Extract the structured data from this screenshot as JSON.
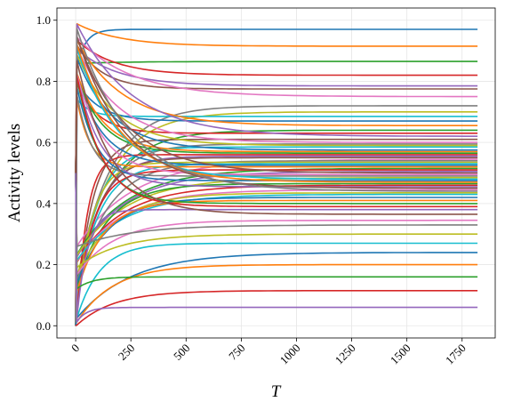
{
  "chart_data": {
    "type": "line",
    "title": "",
    "xlabel": "T",
    "ylabel": "Activity levels",
    "xlim": [
      -85,
      1900
    ],
    "ylim": [
      -0.04,
      1.04
    ],
    "xticks": [
      0,
      250,
      500,
      750,
      1000,
      1250,
      1500,
      1750
    ],
    "xtick_labels": [
      "0",
      "250",
      "500",
      "750",
      "1000",
      "1250",
      "1500",
      "1750"
    ],
    "yticks": [
      0.0,
      0.2,
      0.4,
      0.6,
      0.8,
      1.0
    ],
    "ytick_labels": [
      "0.0",
      "0.2",
      "0.4",
      "0.6",
      "0.8",
      "1.0"
    ],
    "x_tick_rotation_deg": 45,
    "grid": true,
    "legend": "none",
    "x_end": 1820,
    "palette": [
      "#1f77b4",
      "#ff7f0e",
      "#2ca02c",
      "#d62728",
      "#9467bd",
      "#8c564b",
      "#e377c2",
      "#7f7f7f",
      "#bcbd22",
      "#17becf"
    ],
    "series_final_values": [
      0.97,
      0.915,
      0.865,
      0.82,
      0.785,
      0.775,
      0.75,
      0.72,
      0.7,
      0.685,
      0.67,
      0.655,
      0.64,
      0.63,
      0.62,
      0.61,
      0.6,
      0.595,
      0.59,
      0.585,
      0.575,
      0.57,
      0.565,
      0.56,
      0.555,
      0.55,
      0.545,
      0.54,
      0.535,
      0.53,
      0.525,
      0.52,
      0.515,
      0.51,
      0.505,
      0.5,
      0.495,
      0.49,
      0.485,
      0.48,
      0.475,
      0.47,
      0.465,
      0.46,
      0.455,
      0.45,
      0.445,
      0.44,
      0.435,
      0.43,
      0.42,
      0.41,
      0.4,
      0.39,
      0.38,
      0.365,
      0.345,
      0.33,
      0.3,
      0.27,
      0.24,
      0.2,
      0.16,
      0.115,
      0.06
    ]
  }
}
